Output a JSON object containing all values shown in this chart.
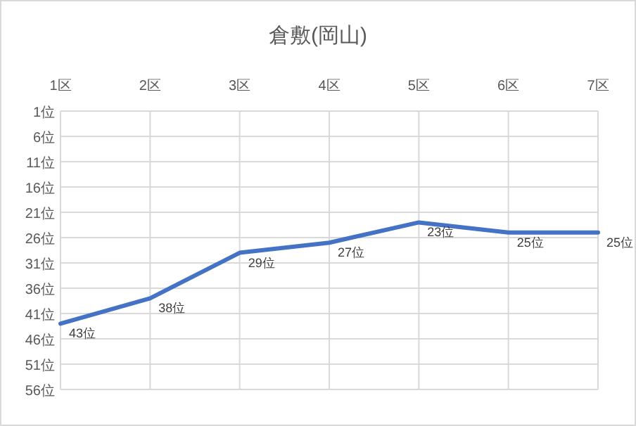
{
  "chart_data": {
    "type": "line",
    "title": "倉敷(岡山)",
    "categories": [
      "1区",
      "2区",
      "3区",
      "4区",
      "5区",
      "6区",
      "7区"
    ],
    "series": [
      {
        "color": "#4472c4",
        "values": [
          43,
          38,
          29,
          27,
          23,
          25,
          25
        ],
        "value_labels": [
          "43位",
          "38位",
          "29位",
          "27位",
          "23位",
          "25位",
          "25位"
        ]
      }
    ],
    "ylim": [
      56,
      1
    ],
    "yticks": [
      {
        "value": 1,
        "label": "1位"
      },
      {
        "value": 6,
        "label": "6位"
      },
      {
        "value": 11,
        "label": "11位"
      },
      {
        "value": 16,
        "label": "16位"
      },
      {
        "value": 21,
        "label": "21位"
      },
      {
        "value": 26,
        "label": "26位"
      },
      {
        "value": 31,
        "label": "31位"
      },
      {
        "value": 36,
        "label": "36位"
      },
      {
        "value": 41,
        "label": "41位"
      },
      {
        "value": 46,
        "label": "46位"
      },
      {
        "value": 51,
        "label": "51位"
      },
      {
        "value": 56,
        "label": "56位"
      }
    ],
    "grid": true,
    "marker": "none",
    "line_style": "solid"
  }
}
